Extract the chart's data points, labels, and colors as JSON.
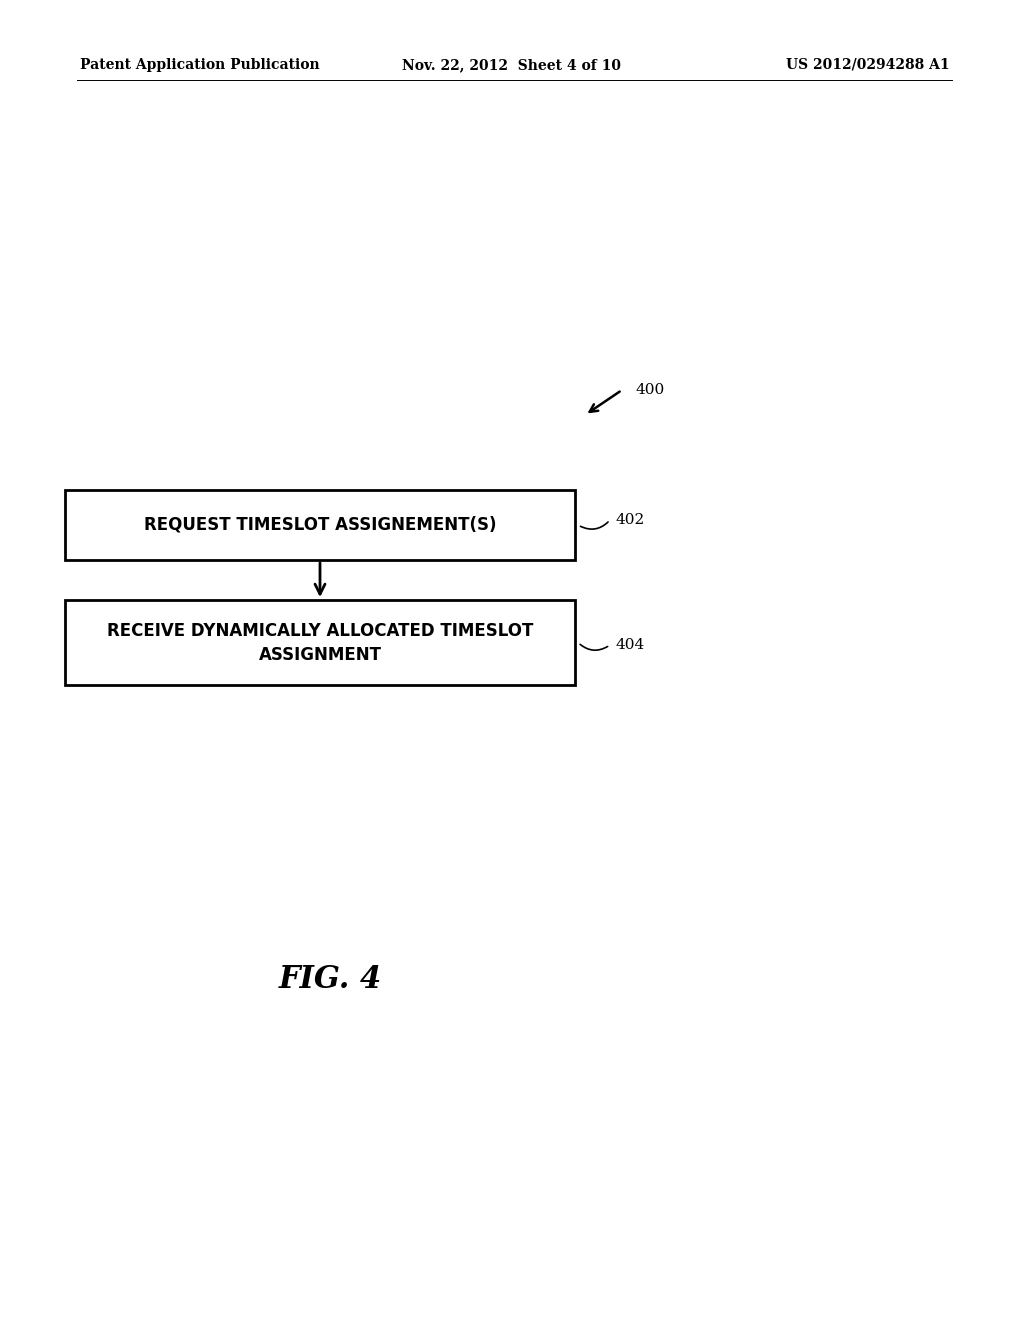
{
  "background_color": "#ffffff",
  "header_left": "Patent Application Publication",
  "header_mid": "Nov. 22, 2012  Sheet 4 of 10",
  "header_right": "US 2012/0294288 A1",
  "box1_label": "REQUEST TIMESLOT ASSIGNEMENT(S)",
  "box1_ref": "402",
  "box2_line1": "RECEIVE DYNAMICALLY ALLOCATED TIMESLOT",
  "box2_line2": "ASSIGNMENT",
  "box2_ref": "404",
  "fig_label": "400",
  "fig_caption": "FIG. 4"
}
